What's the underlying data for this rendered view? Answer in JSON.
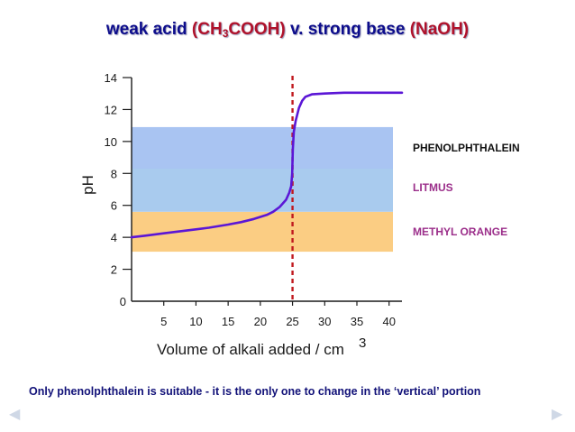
{
  "title": {
    "part1": "weak acid ",
    "part2": "(CH",
    "part2_sub": "3",
    "part3": "COOH)",
    "part4": " v. strong base ",
    "part5": "(NaOH)"
  },
  "caption": "Only phenolphthalein is suitable - it is the only one to change in the ‘vertical’ portion",
  "nav": {
    "prev_icon": "triangle-left-icon",
    "next_icon": "triangle-right-icon"
  },
  "chart_data": {
    "type": "line",
    "title": "weak acid (CH3COOH) v. strong base (NaOH)",
    "xlabel": "Volume of alkali added / cm",
    "xlabel_superscript": "3",
    "ylabel": "pH",
    "xlim": [
      0,
      42
    ],
    "ylim": [
      0,
      14
    ],
    "x_ticks": [
      5,
      10,
      15,
      20,
      25,
      30,
      35,
      40
    ],
    "y_ticks": [
      0,
      2,
      4,
      6,
      8,
      10,
      12,
      14
    ],
    "grid": false,
    "equivalence_point": 25,
    "series": [
      {
        "color": "#5b16d6",
        "x": [
          0,
          2,
          5,
          8,
          10,
          12,
          15,
          17,
          19,
          21,
          22,
          23,
          24,
          24.5,
          24.8,
          24.95,
          25.05,
          25.2,
          25.5,
          26,
          26.5,
          27,
          28,
          30,
          33,
          35,
          40,
          42
        ],
        "y": [
          4.0,
          4.1,
          4.25,
          4.4,
          4.5,
          4.6,
          4.8,
          4.95,
          5.15,
          5.4,
          5.6,
          5.9,
          6.35,
          6.8,
          7.2,
          8.0,
          9.5,
          10.6,
          11.3,
          12.1,
          12.55,
          12.8,
          12.95,
          13.0,
          13.05,
          13.05,
          13.05,
          13.05
        ]
      }
    ],
    "indicator_bands": [
      {
        "name": "PHENOLPHTHALEIN",
        "ymin": 8.3,
        "ymax": 10.9,
        "color": "#a9c4f2",
        "label_color": "#111111"
      },
      {
        "name": "LITMUS",
        "ymin": 5.6,
        "ymax": 8.6,
        "color": "#a9cbee",
        "label_color": "#9b2e8a"
      },
      {
        "name": "METHYL ORANGE",
        "ymin": 3.1,
        "ymax": 5.6,
        "color": "#fbcd83",
        "label_color": "#9b2e8a"
      }
    ],
    "colors": {
      "equivalence_line": "#c0181e",
      "axis": "#1a1a1a"
    }
  }
}
